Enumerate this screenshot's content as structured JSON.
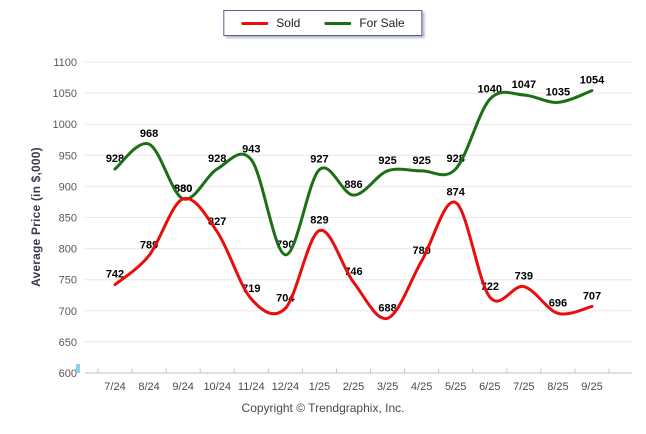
{
  "chart_data": {
    "type": "line",
    "x": [
      "7/24",
      "8/24",
      "9/24",
      "10/24",
      "11/24",
      "12/24",
      "1/25",
      "2/25",
      "3/25",
      "4/25",
      "5/25",
      "6/25",
      "7/25",
      "8/25",
      "9/25"
    ],
    "series": [
      {
        "name": "Sold",
        "color": "#ea0d0d",
        "values": [
          742,
          789,
          880,
          827,
          719,
          704,
          829,
          746,
          688,
          780,
          874,
          722,
          739,
          696,
          707
        ]
      },
      {
        "name": "For Sale",
        "color": "#1b7016",
        "values": [
          928,
          968,
          880,
          928,
          943,
          790,
          927,
          886,
          925,
          925,
          928,
          1040,
          1047,
          1035,
          1054
        ]
      }
    ],
    "title": "",
    "xlabel": "",
    "ylabel": "Average Price (in $,000)",
    "ylim": [
      600,
      1100
    ],
    "ytick_step": 50,
    "grid": true,
    "smooth": true,
    "legend_position": "top-center",
    "point_label_color": "#000000"
  },
  "footer": {
    "copyright": "Copyright © Trendgraphix, Inc."
  }
}
